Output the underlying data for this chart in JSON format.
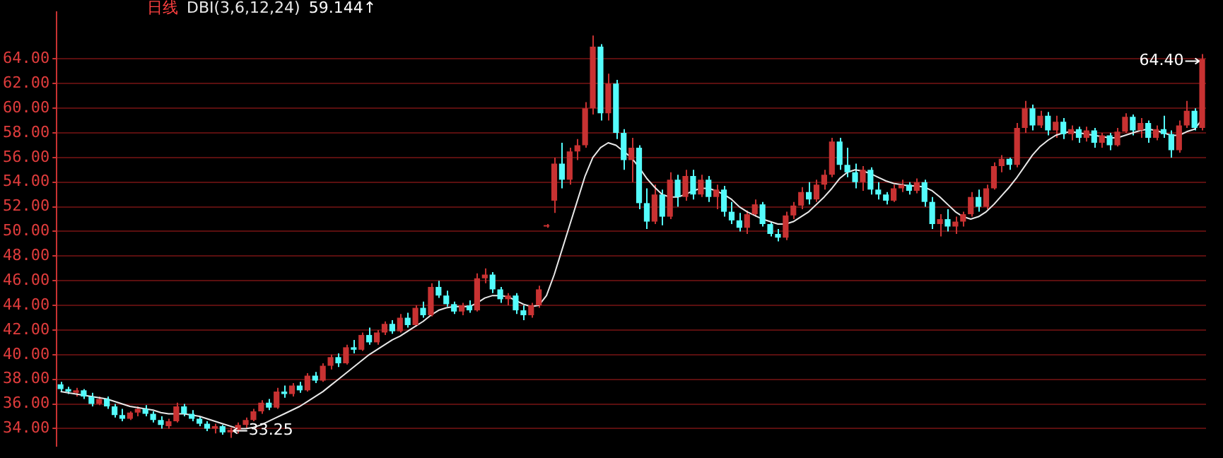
{
  "chart_data": {
    "type": "candlestick",
    "title": "日线",
    "categories": [
      null,
      null,
      null,
      null,
      null,
      null,
      null,
      null,
      null,
      null,
      null,
      null,
      null,
      null,
      null,
      null,
      null,
      null,
      null,
      null,
      null,
      null,
      null,
      null,
      null,
      null,
      null,
      null,
      null,
      null,
      null,
      null,
      null,
      null,
      null,
      null,
      null,
      null,
      null,
      null,
      null,
      null,
      null,
      null,
      null,
      null,
      null,
      null,
      null,
      null,
      null,
      null,
      null,
      null,
      null,
      null,
      null,
      null,
      null,
      null,
      null,
      null,
      null,
      null,
      null,
      null,
      null,
      null,
      null,
      null,
      null,
      null,
      null,
      null,
      null,
      null,
      null,
      null,
      null,
      null,
      null,
      null,
      null,
      null,
      null,
      null,
      null,
      null,
      null,
      null,
      null,
      null,
      null,
      null,
      null,
      null,
      null,
      null,
      null,
      null,
      null,
      null,
      null,
      null,
      null,
      null,
      null,
      null,
      null,
      null,
      null,
      null,
      null,
      null,
      null,
      null,
      null,
      null,
      null,
      null,
      null,
      null,
      null,
      null,
      null,
      null,
      null,
      null,
      null,
      null,
      null,
      null,
      null,
      null,
      null,
      null,
      null,
      null,
      null,
      null,
      null,
      null,
      null,
      null,
      null,
      null,
      null,
      null,
      null
    ],
    "ohlc": [
      [
        37.6,
        37.8,
        37.0,
        37.2
      ],
      [
        37.2,
        37.4,
        36.8,
        37.0
      ],
      [
        36.9,
        37.3,
        36.6,
        37.1
      ],
      [
        37.1,
        37.2,
        36.4,
        36.6
      ],
      [
        36.6,
        36.9,
        35.8,
        36.0
      ],
      [
        36.0,
        36.6,
        35.9,
        36.4
      ],
      [
        36.4,
        36.6,
        35.6,
        35.8
      ],
      [
        35.8,
        36.0,
        34.9,
        35.1
      ],
      [
        35.1,
        35.6,
        34.6,
        34.8
      ],
      [
        34.8,
        35.4,
        34.7,
        35.3
      ],
      [
        35.3,
        35.8,
        35.0,
        35.6
      ],
      [
        35.6,
        35.9,
        35.0,
        35.2
      ],
      [
        35.2,
        35.4,
        34.5,
        34.7
      ],
      [
        34.7,
        35.0,
        34.0,
        34.3
      ],
      [
        34.2,
        34.8,
        34.0,
        34.6
      ],
      [
        34.6,
        36.1,
        34.5,
        35.8
      ],
      [
        35.8,
        36.0,
        35.0,
        35.2
      ],
      [
        35.2,
        35.5,
        34.6,
        34.8
      ],
      [
        34.8,
        35.0,
        34.2,
        34.4
      ],
      [
        34.4,
        34.6,
        33.8,
        34.0
      ],
      [
        34.0,
        34.4,
        33.6,
        34.2
      ],
      [
        34.2,
        34.3,
        33.5,
        33.7
      ],
      [
        33.7,
        34.1,
        33.25,
        33.9
      ],
      [
        33.9,
        34.5,
        33.6,
        34.3
      ],
      [
        34.3,
        34.9,
        34.0,
        34.7
      ],
      [
        34.7,
        35.6,
        34.6,
        35.4
      ],
      [
        35.4,
        36.3,
        35.2,
        36.1
      ],
      [
        36.1,
        36.4,
        35.5,
        35.7
      ],
      [
        35.7,
        37.3,
        35.6,
        37.0
      ],
      [
        37.0,
        37.5,
        36.5,
        36.8
      ],
      [
        36.8,
        37.7,
        36.6,
        37.5
      ],
      [
        37.5,
        37.8,
        36.9,
        37.1
      ],
      [
        37.1,
        38.5,
        37.0,
        38.3
      ],
      [
        38.3,
        38.6,
        37.7,
        37.9
      ],
      [
        37.9,
        39.3,
        37.8,
        39.1
      ],
      [
        39.1,
        40.0,
        38.8,
        39.8
      ],
      [
        39.8,
        40.1,
        39.0,
        39.3
      ],
      [
        39.3,
        40.8,
        39.2,
        40.6
      ],
      [
        40.6,
        41.2,
        40.1,
        40.4
      ],
      [
        40.4,
        41.8,
        40.3,
        41.6
      ],
      [
        41.6,
        42.2,
        40.8,
        41.0
      ],
      [
        41.0,
        42.0,
        40.8,
        41.8
      ],
      [
        41.8,
        42.7,
        41.6,
        42.5
      ],
      [
        42.5,
        42.8,
        41.7,
        41.9
      ],
      [
        41.9,
        43.3,
        41.8,
        43.0
      ],
      [
        43.0,
        43.4,
        42.2,
        42.4
      ],
      [
        42.4,
        44.0,
        42.3,
        43.8
      ],
      [
        43.8,
        44.3,
        43.0,
        43.2
      ],
      [
        43.2,
        45.8,
        43.1,
        45.5
      ],
      [
        45.5,
        46.0,
        44.6,
        44.8
      ],
      [
        44.8,
        45.2,
        43.9,
        44.1
      ],
      [
        44.1,
        44.3,
        43.3,
        43.5
      ],
      [
        43.5,
        44.2,
        43.2,
        44.0
      ],
      [
        44.0,
        44.4,
        43.4,
        43.6
      ],
      [
        43.6,
        46.6,
        43.5,
        46.2
      ],
      [
        46.2,
        47.0,
        45.8,
        46.5
      ],
      [
        46.5,
        46.7,
        45.0,
        45.3
      ],
      [
        45.3,
        45.5,
        44.2,
        44.5
      ],
      [
        44.5,
        45.0,
        44.0,
        44.8
      ],
      [
        44.8,
        45.0,
        43.3,
        43.6
      ],
      [
        43.6,
        44.0,
        42.8,
        43.2
      ],
      [
        43.2,
        44.2,
        43.0,
        44.0
      ],
      [
        44.0,
        45.6,
        43.8,
        45.3
      ],
      [
        50.4,
        50.6,
        50.3,
        50.5
      ],
      [
        52.5,
        56.0,
        51.5,
        55.5
      ],
      [
        55.5,
        57.2,
        53.5,
        54.2
      ],
      [
        54.2,
        56.8,
        53.8,
        56.5
      ],
      [
        56.5,
        57.5,
        55.8,
        57.0
      ],
      [
        57.0,
        60.5,
        56.8,
        60.0
      ],
      [
        60.0,
        65.9,
        59.5,
        65.0
      ],
      [
        65.0,
        65.2,
        59.0,
        59.6
      ],
      [
        59.6,
        62.8,
        59.0,
        62.0
      ],
      [
        62.0,
        62.3,
        57.5,
        58.0
      ],
      [
        58.0,
        58.3,
        55.0,
        55.8
      ],
      [
        55.8,
        57.6,
        54.0,
        56.8
      ],
      [
        56.8,
        57.0,
        51.8,
        52.3
      ],
      [
        52.3,
        53.5,
        50.2,
        50.8
      ],
      [
        50.8,
        53.8,
        50.6,
        53.0
      ],
      [
        53.0,
        53.4,
        50.5,
        51.2
      ],
      [
        51.2,
        54.8,
        51.0,
        54.2
      ],
      [
        54.2,
        54.6,
        52.0,
        52.8
      ],
      [
        52.8,
        55.0,
        52.5,
        54.5
      ],
      [
        54.5,
        55.0,
        52.6,
        53.0
      ],
      [
        53.0,
        54.6,
        52.8,
        54.2
      ],
      [
        54.2,
        54.5,
        52.4,
        52.8
      ],
      [
        52.8,
        53.8,
        51.8,
        53.4
      ],
      [
        53.4,
        53.7,
        51.2,
        51.6
      ],
      [
        51.6,
        52.4,
        50.6,
        50.9
      ],
      [
        50.9,
        51.5,
        50.0,
        50.3
      ],
      [
        50.3,
        51.7,
        49.8,
        51.4
      ],
      [
        51.4,
        52.6,
        51.2,
        52.2
      ],
      [
        52.2,
        52.4,
        50.4,
        50.6
      ],
      [
        50.6,
        50.8,
        49.6,
        49.8
      ],
      [
        49.8,
        50.2,
        49.2,
        49.5
      ],
      [
        49.5,
        51.6,
        49.3,
        51.3
      ],
      [
        51.3,
        52.4,
        51.0,
        52.1
      ],
      [
        52.1,
        53.6,
        51.8,
        53.2
      ],
      [
        53.2,
        54.0,
        52.2,
        52.6
      ],
      [
        52.6,
        54.2,
        52.4,
        53.8
      ],
      [
        53.8,
        55.0,
        53.4,
        54.6
      ],
      [
        54.6,
        57.6,
        54.4,
        57.3
      ],
      [
        57.3,
        57.6,
        55.0,
        55.4
      ],
      [
        55.4,
        56.8,
        54.4,
        54.8
      ],
      [
        54.8,
        55.5,
        53.5,
        54.0
      ],
      [
        54.0,
        55.3,
        53.3,
        55.0
      ],
      [
        55.0,
        55.2,
        53.0,
        53.4
      ],
      [
        53.4,
        54.0,
        52.6,
        53.0
      ],
      [
        53.0,
        53.2,
        52.2,
        52.5
      ],
      [
        52.5,
        53.8,
        52.4,
        53.5
      ],
      [
        53.5,
        54.2,
        53.2,
        53.8
      ],
      [
        53.8,
        54.0,
        53.0,
        53.3
      ],
      [
        53.3,
        54.3,
        53.1,
        54.0
      ],
      [
        54.0,
        54.2,
        52.0,
        52.4
      ],
      [
        52.4,
        52.8,
        50.2,
        50.6
      ],
      [
        50.6,
        51.4,
        49.6,
        51.0
      ],
      [
        51.0,
        51.8,
        50.0,
        50.4
      ],
      [
        50.4,
        51.2,
        49.8,
        50.8
      ],
      [
        50.8,
        51.6,
        50.4,
        51.4
      ],
      [
        51.4,
        53.2,
        51.2,
        52.8
      ],
      [
        52.8,
        53.4,
        51.6,
        52.0
      ],
      [
        52.0,
        53.8,
        51.8,
        53.5
      ],
      [
        53.5,
        55.6,
        53.4,
        55.3
      ],
      [
        55.3,
        56.2,
        54.8,
        55.9
      ],
      [
        55.9,
        56.0,
        55.0,
        55.4
      ],
      [
        55.4,
        58.8,
        55.2,
        58.4
      ],
      [
        58.4,
        60.6,
        58.0,
        60.0
      ],
      [
        60.0,
        60.3,
        58.2,
        58.6
      ],
      [
        58.6,
        59.8,
        58.4,
        59.4
      ],
      [
        59.4,
        59.7,
        57.8,
        58.2
      ],
      [
        58.2,
        59.4,
        57.6,
        58.9
      ],
      [
        58.9,
        59.2,
        57.5,
        57.9
      ],
      [
        57.9,
        58.6,
        57.4,
        58.3
      ],
      [
        58.3,
        58.5,
        57.2,
        57.6
      ],
      [
        57.6,
        58.5,
        57.3,
        58.2
      ],
      [
        58.2,
        58.4,
        56.8,
        57.2
      ],
      [
        57.2,
        58.0,
        56.8,
        57.8
      ],
      [
        57.8,
        58.0,
        56.6,
        57.0
      ],
      [
        57.0,
        58.4,
        56.9,
        58.1
      ],
      [
        58.1,
        59.6,
        58.0,
        59.3
      ],
      [
        59.3,
        59.5,
        57.8,
        58.2
      ],
      [
        58.2,
        59.2,
        57.6,
        58.8
      ],
      [
        58.8,
        59.0,
        57.2,
        57.6
      ],
      [
        57.6,
        58.6,
        57.4,
        58.3
      ],
      [
        58.3,
        59.4,
        57.6,
        57.9
      ],
      [
        57.9,
        58.2,
        56.0,
        56.6
      ],
      [
        56.6,
        59.0,
        56.4,
        58.6
      ],
      [
        58.6,
        60.6,
        58.4,
        59.8
      ],
      [
        59.8,
        60.0,
        58.2,
        58.4
      ],
      [
        58.4,
        64.4,
        58.2,
        64.0
      ]
    ],
    "series": [
      {
        "name": "DBI(3,6,12,24)",
        "type": "line",
        "color": "#e8e8e8",
        "values": [
          37.0,
          36.9,
          36.8,
          36.7,
          36.6,
          36.5,
          36.4,
          36.2,
          36.0,
          35.8,
          35.7,
          35.6,
          35.5,
          35.3,
          35.2,
          35.2,
          35.2,
          35.1,
          35.0,
          34.8,
          34.6,
          34.4,
          34.2,
          34.0,
          34.0,
          34.1,
          34.3,
          34.6,
          34.9,
          35.2,
          35.5,
          35.8,
          36.2,
          36.6,
          37.0,
          37.5,
          38.0,
          38.5,
          39.0,
          39.5,
          40.0,
          40.4,
          40.8,
          41.2,
          41.5,
          41.9,
          42.3,
          42.7,
          43.2,
          43.6,
          43.8,
          43.9,
          43.9,
          43.9,
          44.2,
          44.6,
          44.8,
          44.8,
          44.7,
          44.4,
          44.1,
          43.9,
          44.0,
          44.8,
          46.5,
          48.5,
          50.5,
          52.5,
          54.5,
          56.0,
          56.8,
          57.2,
          57.0,
          56.5,
          56.0,
          55.2,
          54.3,
          53.6,
          53.0,
          52.8,
          52.8,
          53.0,
          53.3,
          53.5,
          53.5,
          53.3,
          53.0,
          52.6,
          52.0,
          51.6,
          51.3,
          51.0,
          50.8,
          50.6,
          50.6,
          50.8,
          51.2,
          51.6,
          52.2,
          52.8,
          53.5,
          54.3,
          54.8,
          55.0,
          54.9,
          54.7,
          54.4,
          54.1,
          53.9,
          53.8,
          53.7,
          53.7,
          53.6,
          53.3,
          52.8,
          52.2,
          51.6,
          51.2,
          51.0,
          51.2,
          51.6,
          52.2,
          52.9,
          53.6,
          54.4,
          55.3,
          56.2,
          56.9,
          57.4,
          57.8,
          58.0,
          58.1,
          58.0,
          57.9,
          57.8,
          57.7,
          57.6,
          57.6,
          57.8,
          58.0,
          58.2,
          58.3,
          58.2,
          58.0,
          57.8,
          57.8,
          58.1,
          58.3,
          59.1
        ]
      }
    ],
    "ylim": [
      32.6,
      67.8
    ],
    "yticks": [
      {
        "value": 34,
        "label": "34.00"
      },
      {
        "value": 36,
        "label": "36.00"
      },
      {
        "value": 38,
        "label": "38.00"
      },
      {
        "value": 40,
        "label": "40.00"
      },
      {
        "value": 42,
        "label": "42.00"
      },
      {
        "value": 44,
        "label": "44.00"
      },
      {
        "value": 46,
        "label": "46.00"
      },
      {
        "value": 48,
        "label": "48.00"
      },
      {
        "value": 50,
        "label": "50.00"
      },
      {
        "value": 52,
        "label": "52.00"
      },
      {
        "value": 54,
        "label": "54.00"
      },
      {
        "value": 56,
        "label": "56.00"
      },
      {
        "value": 58,
        "label": "58.00"
      },
      {
        "value": 60,
        "label": "60.00"
      },
      {
        "value": 62,
        "label": "62.00"
      },
      {
        "value": 64,
        "label": "64.00"
      }
    ],
    "grid": "y",
    "tick_labels": "y",
    "legend": "top left",
    "annotations": [
      "59.144↑",
      "64.40",
      "33.25"
    ]
  }
}
